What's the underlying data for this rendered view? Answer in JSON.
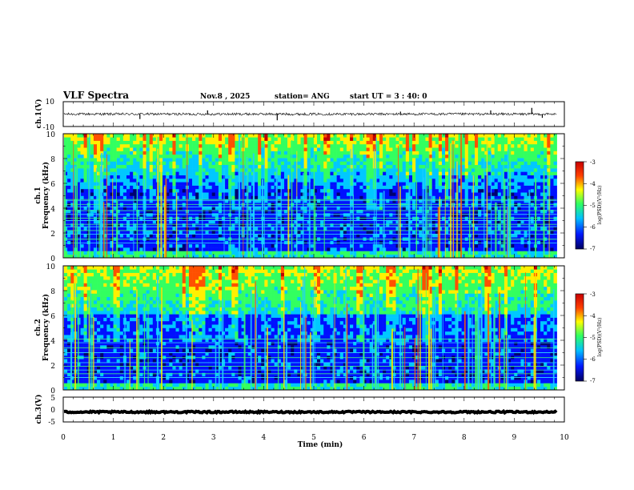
{
  "header": {
    "title": "VLF Spectra",
    "date": "Nov.8 , 2025",
    "station": "station= ANG",
    "start_ut": "start UT = 3 : 40: 0"
  },
  "chart_data": [
    {
      "id": "ch1-waveform",
      "type": "line",
      "ylabel": "ch.1(V)",
      "ylim": [
        -10,
        10
      ],
      "yticks": [
        "10",
        "-10"
      ],
      "baseline": 0,
      "noise_amplitude": 1,
      "spikes": [
        {
          "t": 1.53,
          "v": -4
        },
        {
          "t": 2.88,
          "v": 3
        },
        {
          "t": 4.27,
          "v": -5
        },
        {
          "t": 6.73,
          "v": 2
        },
        {
          "t": 8.53,
          "v": 3
        },
        {
          "t": 9.35,
          "v": 5
        },
        {
          "t": 9.56,
          "v": -3
        }
      ]
    },
    {
      "id": "ch1-spectrogram",
      "type": "heatmap",
      "ylabel": "ch.1",
      "ylabel2": "Frequency (kHz)",
      "ylim": [
        0,
        10
      ],
      "yticks": [
        "0",
        "2",
        "4",
        "6",
        "8",
        "10"
      ],
      "colorbar": {
        "label": "log(PSD)(V²/Hz)",
        "range": [
          -7,
          -3
        ],
        "ticks": [
          "-3",
          "-4",
          "-5",
          "-6",
          "-7"
        ]
      }
    },
    {
      "id": "ch2-spectrogram",
      "type": "heatmap",
      "ylabel": "ch.2",
      "ylabel2": "Frequency (kHz)",
      "ylim": [
        0,
        10
      ],
      "yticks": [
        "0",
        "2",
        "4",
        "6",
        "8",
        "10"
      ],
      "colorbar": {
        "label": "log(PSD)(V²/Hz)",
        "range": [
          -7,
          -3
        ],
        "ticks": [
          "-3",
          "-4",
          "-5",
          "-6",
          "-7"
        ]
      }
    },
    {
      "id": "ch3-waveform",
      "type": "line",
      "ylabel": "ch.3(V)",
      "ylim": [
        -5,
        5
      ],
      "yticks": [
        "5",
        "0",
        "-5"
      ],
      "baseline": -1,
      "noise_amplitude": 0.3
    }
  ],
  "xaxis": {
    "label": "Time (min)",
    "range": [
      0,
      10
    ],
    "ticks": [
      "0",
      "1",
      "2",
      "3",
      "4",
      "5",
      "6",
      "7",
      "8",
      "9",
      "10"
    ],
    "data_end": 9.85
  },
  "colormap": [
    "#000070",
    "#0010ff",
    "#00c8ff",
    "#32ff60",
    "#fff000",
    "#ff5000",
    "#c00000"
  ]
}
